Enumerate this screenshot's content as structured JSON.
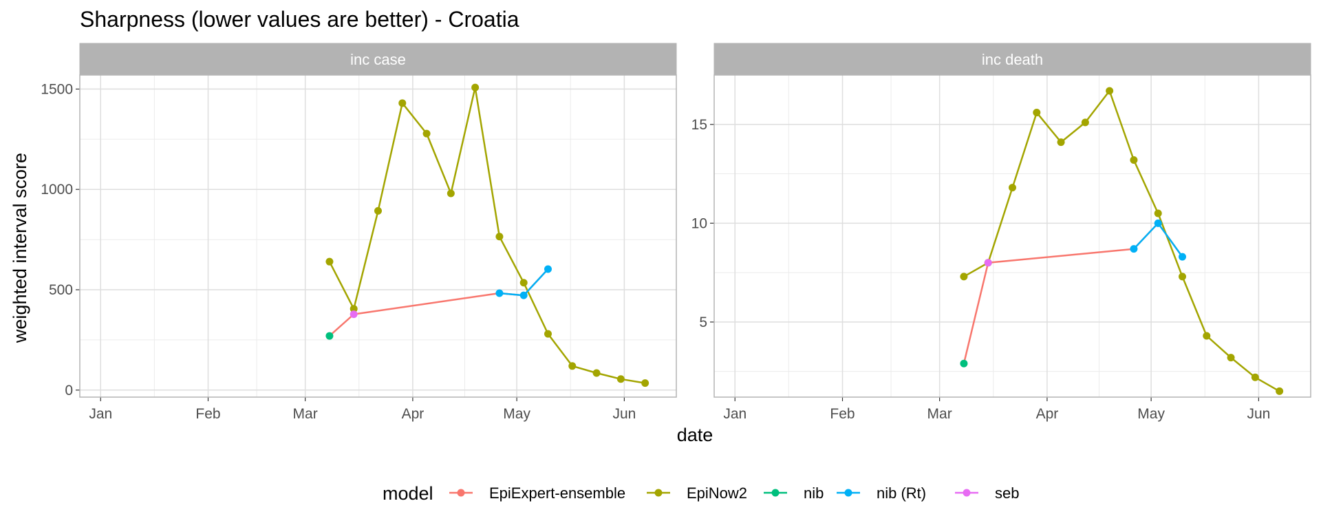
{
  "title": "Sharpness (lower values are better) - Croatia",
  "xlabel": "date",
  "ylabel": "weighted interval score",
  "legend_title": "model",
  "chart_data": {
    "type": "line",
    "title": "Sharpness (lower values are better) - Croatia",
    "xlabel": "date",
    "ylabel": "weighted interval score",
    "legend_position": "bottom",
    "grid": true,
    "x_ticks": [
      "Jan",
      "Feb",
      "Mar",
      "Apr",
      "May",
      "Jun"
    ],
    "x_tick_dates": [
      "2021-01-01",
      "2021-02-01",
      "2021-03-01",
      "2021-04-01",
      "2021-05-01",
      "2021-06-01"
    ],
    "x_range": [
      "2020-12-26",
      "2021-06-16"
    ],
    "models": [
      {
        "name": "EpiExpert-ensemble",
        "color": "#F8766D"
      },
      {
        "name": "EpiNow2",
        "color": "#A3A500"
      },
      {
        "name": "nib",
        "color": "#00BF7D"
      },
      {
        "name": "nib (Rt)",
        "color": "#00B0F6"
      },
      {
        "name": "seb",
        "color": "#E76BF3"
      }
    ],
    "panels": [
      {
        "strip": "inc case",
        "ylim": [
          -35,
          1570
        ],
        "y_ticks": [
          0,
          500,
          1000,
          1500
        ],
        "series": [
          {
            "name": "EpiNow2",
            "points": [
              [
                "2021-03-08",
                640
              ],
              [
                "2021-03-15",
                405
              ],
              [
                "2021-03-22",
                893
              ],
              [
                "2021-03-29",
                1430
              ],
              [
                "2021-04-05",
                1278
              ],
              [
                "2021-04-12",
                980
              ],
              [
                "2021-04-19",
                1508
              ],
              [
                "2021-04-26",
                765
              ],
              [
                "2021-05-03",
                535
              ],
              [
                "2021-05-10",
                280
              ],
              [
                "2021-05-17",
                120
              ],
              [
                "2021-05-24",
                85
              ],
              [
                "2021-05-31",
                55
              ],
              [
                "2021-06-07",
                35
              ]
            ]
          },
          {
            "name": "EpiExpert-ensemble",
            "points": [
              [
                "2021-03-08",
                270
              ],
              [
                "2021-03-15",
                378
              ],
              [
                "2021-04-26",
                483
              ],
              [
                "2021-05-03",
                472
              ],
              [
                "2021-05-10",
                603
              ]
            ]
          },
          {
            "name": "nib",
            "points": [
              [
                "2021-03-08",
                270
              ]
            ]
          },
          {
            "name": "nib (Rt)",
            "points": [
              [
                "2021-04-26",
                483
              ],
              [
                "2021-05-03",
                472
              ],
              [
                "2021-05-10",
                603
              ]
            ]
          },
          {
            "name": "seb",
            "points": [
              [
                "2021-03-15",
                378
              ]
            ]
          }
        ]
      },
      {
        "strip": "inc death",
        "ylim": [
          1.2,
          17.5
        ],
        "y_ticks": [
          5,
          10,
          15
        ],
        "series": [
          {
            "name": "EpiNow2",
            "points": [
              [
                "2021-03-08",
                7.3
              ],
              [
                "2021-03-15",
                8.0
              ],
              [
                "2021-03-22",
                11.8
              ],
              [
                "2021-03-29",
                15.6
              ],
              [
                "2021-04-05",
                14.1
              ],
              [
                "2021-04-12",
                15.1
              ],
              [
                "2021-04-19",
                16.7
              ],
              [
                "2021-04-26",
                13.2
              ],
              [
                "2021-05-03",
                10.5
              ],
              [
                "2021-05-10",
                7.3
              ],
              [
                "2021-05-17",
                4.3
              ],
              [
                "2021-05-24",
                3.2
              ],
              [
                "2021-05-31",
                2.2
              ],
              [
                "2021-06-07",
                1.5
              ]
            ]
          },
          {
            "name": "EpiExpert-ensemble",
            "points": [
              [
                "2021-03-08",
                2.9
              ],
              [
                "2021-03-15",
                8.0
              ],
              [
                "2021-04-26",
                8.7
              ],
              [
                "2021-05-03",
                10.0
              ],
              [
                "2021-05-10",
                8.3
              ]
            ]
          },
          {
            "name": "nib",
            "points": [
              [
                "2021-03-08",
                2.9
              ]
            ]
          },
          {
            "name": "nib (Rt)",
            "points": [
              [
                "2021-04-26",
                8.7
              ],
              [
                "2021-05-03",
                10.0
              ],
              [
                "2021-05-10",
                8.3
              ]
            ]
          },
          {
            "name": "seb",
            "points": [
              [
                "2021-03-15",
                8.0
              ]
            ]
          }
        ]
      }
    ]
  }
}
